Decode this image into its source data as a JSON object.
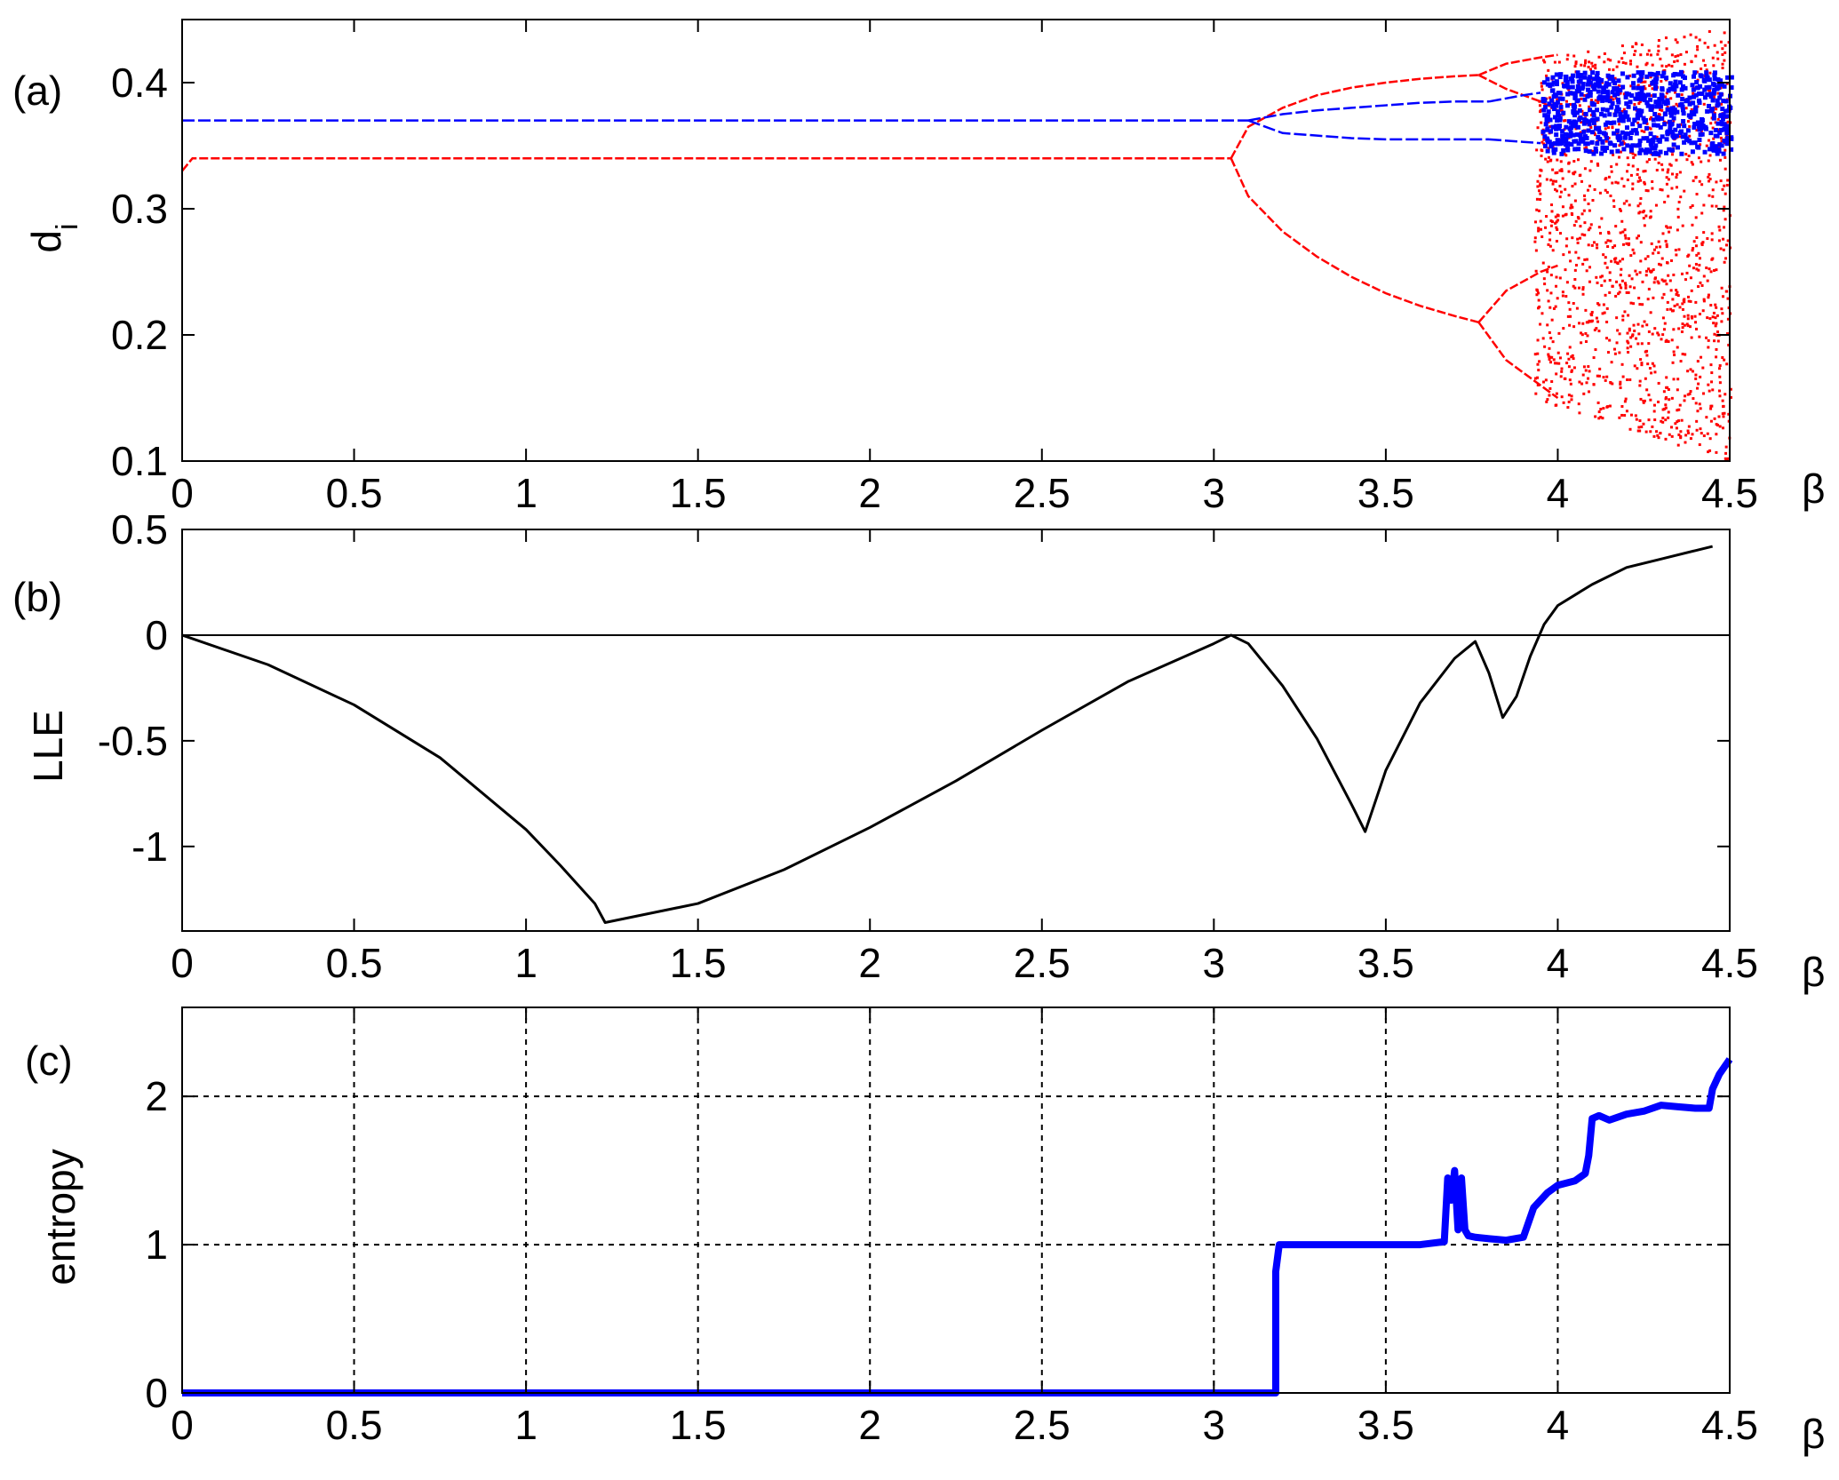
{
  "chart_data": [
    {
      "type": "scatter",
      "panel_label": "(a)",
      "xlabel": "β",
      "ylabel": "d",
      "ylabel_subscript": "i",
      "xlim": [
        0,
        4.5
      ],
      "ylim": [
        0.1,
        0.45
      ],
      "x_ticks": [
        "0",
        "0.5",
        "1",
        "1.5",
        "2",
        "2.5",
        "3",
        "3.5",
        "4",
        "4.5"
      ],
      "y_ticks": [
        "0.1",
        "0.2",
        "0.3",
        "0.4"
      ],
      "grid": false,
      "series": [
        {
          "color": "#ff0000",
          "branches": [
            {
              "x": [
                0,
                0.03,
                0.5,
                1.0,
                1.5,
                2.0,
                2.5,
                3.0,
                3.05
              ],
              "y": [
                0.33,
                0.34,
                0.34,
                0.34,
                0.34,
                0.34,
                0.34,
                0.34,
                0.34
              ]
            },
            {
              "x": [
                3.05,
                3.1,
                3.2,
                3.3,
                3.4,
                3.5,
                3.6,
                3.7,
                3.77
              ],
              "y": [
                0.34,
                0.365,
                0.38,
                0.39,
                0.396,
                0.4,
                0.403,
                0.405,
                0.406
              ]
            },
            {
              "x": [
                3.05,
                3.1,
                3.2,
                3.3,
                3.4,
                3.5,
                3.6,
                3.7,
                3.77
              ],
              "y": [
                0.34,
                0.31,
                0.282,
                0.262,
                0.246,
                0.233,
                0.223,
                0.215,
                0.21
              ]
            },
            {
              "x": [
                3.77,
                3.85,
                3.95,
                4.0
              ],
              "y": [
                0.406,
                0.415,
                0.42,
                0.422
              ]
            },
            {
              "x": [
                3.77,
                3.85,
                3.95,
                4.0
              ],
              "y": [
                0.406,
                0.395,
                0.385,
                0.378
              ]
            },
            {
              "x": [
                3.77,
                3.85,
                3.95,
                4.0
              ],
              "y": [
                0.21,
                0.235,
                0.25,
                0.255
              ]
            },
            {
              "x": [
                3.77,
                3.85,
                3.95,
                4.0
              ],
              "y": [
                0.21,
                0.18,
                0.16,
                0.15
              ]
            }
          ],
          "chaotic_band": {
            "x_range": [
              3.93,
              4.5
            ],
            "y_range": [
              0.1,
              0.445
            ]
          }
        },
        {
          "color": "#0000ff",
          "branches": [
            {
              "x": [
                0,
                0.5,
                1.0,
                1.5,
                2.0,
                2.5,
                3.0,
                3.1
              ],
              "y": [
                0.37,
                0.37,
                0.37,
                0.37,
                0.37,
                0.37,
                0.37,
                0.37
              ]
            },
            {
              "x": [
                3.1,
                3.2,
                3.3,
                3.4,
                3.5,
                3.6,
                3.7,
                3.8
              ],
              "y": [
                0.37,
                0.375,
                0.378,
                0.38,
                0.382,
                0.384,
                0.385,
                0.385
              ]
            },
            {
              "x": [
                3.1,
                3.2,
                3.3,
                3.4,
                3.5,
                3.6,
                3.7,
                3.8
              ],
              "y": [
                0.37,
                0.36,
                0.358,
                0.356,
                0.355,
                0.355,
                0.355,
                0.355
              ]
            },
            {
              "x": [
                3.8,
                3.9,
                3.95
              ],
              "y": [
                0.385,
                0.39,
                0.392
              ]
            },
            {
              "x": [
                3.8,
                3.9,
                3.95
              ],
              "y": [
                0.355,
                0.353,
                0.352
              ]
            }
          ],
          "chaotic_band": {
            "x_range": [
              3.95,
              4.5
            ],
            "y_range": [
              0.345,
              0.41
            ]
          }
        }
      ]
    },
    {
      "type": "line",
      "panel_label": "(b)",
      "xlabel": "β",
      "ylabel": "LLE",
      "xlim": [
        0,
        4.5
      ],
      "ylim": [
        -1.4,
        0.5
      ],
      "x_ticks": [
        "0",
        "0.5",
        "1",
        "1.5",
        "2",
        "2.5",
        "3",
        "3.5",
        "4",
        "4.5"
      ],
      "y_ticks": [
        "0.5",
        "0",
        "-0.5",
        "-1"
      ],
      "grid": false,
      "zero_line": true,
      "series": [
        {
          "color": "#000000",
          "x": [
            0,
            0.25,
            0.5,
            0.75,
            1.0,
            1.1,
            1.2,
            1.23,
            1.5,
            1.75,
            2.0,
            2.25,
            2.5,
            2.75,
            3.0,
            3.05,
            3.1,
            3.2,
            3.3,
            3.4,
            3.44,
            3.5,
            3.6,
            3.7,
            3.76,
            3.8,
            3.84,
            3.88,
            3.92,
            3.96,
            4.0,
            4.1,
            4.2,
            4.3,
            4.4,
            4.45
          ],
          "y": [
            0,
            -0.14,
            -0.33,
            -0.58,
            -0.92,
            -1.09,
            -1.27,
            -1.36,
            -1.27,
            -1.11,
            -0.91,
            -0.69,
            -0.45,
            -0.22,
            -0.04,
            0,
            -0.04,
            -0.24,
            -0.49,
            -0.8,
            -0.93,
            -0.64,
            -0.32,
            -0.11,
            -0.03,
            -0.18,
            -0.39,
            -0.29,
            -0.1,
            0.05,
            0.14,
            0.24,
            0.32,
            0.36,
            0.4,
            0.42
          ]
        }
      ]
    },
    {
      "type": "line",
      "panel_label": "(c)",
      "xlabel": "β",
      "ylabel": "entropy",
      "xlim": [
        0,
        4.5
      ],
      "ylim": [
        0,
        2.6
      ],
      "x_ticks": [
        "0",
        "0.5",
        "1",
        "1.5",
        "2",
        "2.5",
        "3",
        "3.5",
        "4",
        "4.5"
      ],
      "y_ticks": [
        "0",
        "1",
        "2"
      ],
      "grid": true,
      "series": [
        {
          "color": "#0000ff",
          "x": [
            0,
            3.0,
            3.18,
            3.18,
            3.19,
            3.2,
            3.4,
            3.6,
            3.67,
            3.68,
            3.69,
            3.7,
            3.71,
            3.72,
            3.73,
            3.74,
            3.76,
            3.8,
            3.85,
            3.9,
            3.93,
            3.97,
            4.0,
            4.05,
            4.08,
            4.09,
            4.1,
            4.12,
            4.15,
            4.2,
            4.25,
            4.3,
            4.35,
            4.4,
            4.42,
            4.44,
            4.45,
            4.47,
            4.5
          ],
          "y": [
            0,
            0,
            0,
            0.82,
            1.0,
            1.0,
            1.0,
            1.0,
            1.02,
            1.45,
            1.3,
            1.5,
            1.1,
            1.45,
            1.1,
            1.06,
            1.05,
            1.04,
            1.03,
            1.05,
            1.25,
            1.35,
            1.4,
            1.43,
            1.48,
            1.6,
            1.85,
            1.87,
            1.84,
            1.88,
            1.9,
            1.94,
            1.93,
            1.92,
            1.92,
            1.92,
            2.05,
            2.15,
            2.25
          ]
        }
      ]
    }
  ]
}
